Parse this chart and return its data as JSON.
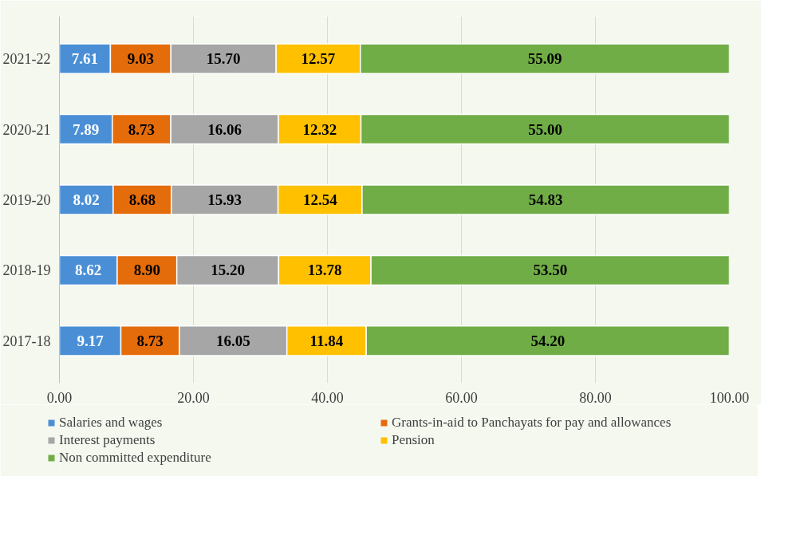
{
  "chart_data": {
    "type": "bar",
    "orientation": "horizontal",
    "stacked": true,
    "categories": [
      "2021-22",
      "2020-21",
      "2019-20",
      "2018-19",
      "2017-18"
    ],
    "series": [
      {
        "name": "Salaries and wages",
        "color": "#4a8fd6",
        "values": [
          7.61,
          7.89,
          8.02,
          8.62,
          9.17
        ],
        "value_labels": [
          "7.61",
          "7.89",
          "8.02",
          "8.62",
          "9.17"
        ]
      },
      {
        "name": "Grants-in-aid to Panchayats for pay and allowances",
        "color": "#e46c0a",
        "values": [
          9.03,
          8.73,
          8.68,
          8.9,
          8.73
        ],
        "value_labels": [
          "9.03",
          "8.73",
          "8.68",
          "8.90",
          "8.73"
        ]
      },
      {
        "name": "Interest payments",
        "color": "#a6a6a6",
        "values": [
          15.7,
          16.06,
          15.93,
          15.2,
          16.05
        ],
        "value_labels": [
          "15.70",
          "16.06",
          "15.93",
          "15.20",
          "16.05"
        ]
      },
      {
        "name": "Pension",
        "color": "#ffc000",
        "values": [
          12.57,
          12.32,
          12.54,
          13.78,
          11.84
        ],
        "value_labels": [
          "12.57",
          "12.32",
          "12.54",
          "13.78",
          "11.84"
        ]
      },
      {
        "name": "Non committed expenditure",
        "color": "#70ad47",
        "values": [
          55.09,
          55.0,
          54.83,
          53.5,
          54.2
        ],
        "value_labels": [
          "55.09",
          "55.00",
          "54.83",
          "53.50",
          "54.20"
        ]
      }
    ],
    "xlim": [
      0,
      100
    ],
    "xticks": [
      {
        "value": 0,
        "label": "0.00"
      },
      {
        "value": 20,
        "label": "20.00"
      },
      {
        "value": 40,
        "label": "40.00"
      },
      {
        "value": 60,
        "label": "60.00"
      },
      {
        "value": 80,
        "label": "80.00"
      },
      {
        "value": 100,
        "label": "100.00"
      }
    ],
    "grid": "x",
    "legend": "bottom"
  }
}
